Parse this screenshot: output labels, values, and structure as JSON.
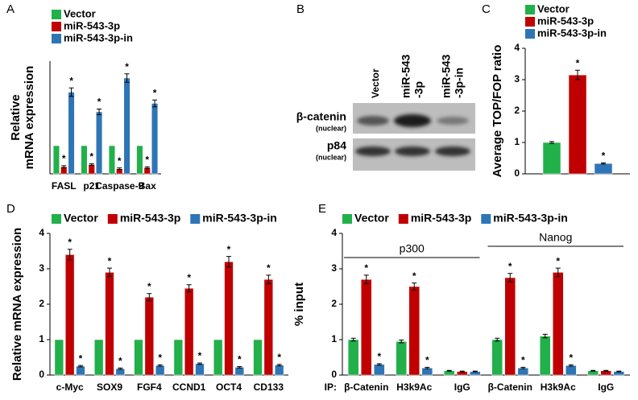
{
  "chart_data": [
    {
      "type": "bar",
      "panel": "A",
      "ylabel": [
        "Relative",
        "mRNA expression"
      ],
      "categories": [
        "FASL",
        "p21",
        "Caspase-9",
        "Bax"
      ],
      "ylim": [
        0,
        4
      ],
      "series": [
        {
          "name": "Vector",
          "color": "#22b04b",
          "values": [
            1,
            1,
            1,
            1
          ]
        },
        {
          "name": "miR-543-3p",
          "color": "#c00000",
          "values": [
            0.25,
            0.33,
            0.18,
            0.22
          ],
          "errors": [
            0.04,
            0.03,
            0.03,
            0.03
          ],
          "marks": [
            "*",
            "*",
            "*",
            "*"
          ]
        },
        {
          "name": "miR-543-3p-in",
          "color": "#2e75b6",
          "values": [
            2.9,
            2.2,
            3.4,
            2.5
          ],
          "errors": [
            0.15,
            0.1,
            0.15,
            0.12
          ],
          "marks": [
            "*",
            "*",
            "*",
            "*"
          ]
        }
      ]
    },
    {
      "type": "bar",
      "panel": "C",
      "ylabel": "Average TOP/FOP ratio",
      "categories": [
        null
      ],
      "ylim": [
        0,
        4
      ],
      "yticks": [
        0,
        1,
        2,
        3,
        4
      ],
      "series": [
        {
          "name": "Vector",
          "color": "#22b04b",
          "values": [
            1.0
          ],
          "errors": [
            0.03
          ]
        },
        {
          "name": "miR-543-3p",
          "color": "#c00000",
          "values": [
            3.15
          ],
          "errors": [
            0.15
          ],
          "marks": [
            "*"
          ]
        },
        {
          "name": "miR-543-3p-in",
          "color": "#2e75b6",
          "values": [
            0.33
          ],
          "errors": [
            0.02
          ],
          "marks": [
            "*"
          ]
        }
      ]
    },
    {
      "type": "bar",
      "panel": "D",
      "ylabel": "Relative  mRNA expression",
      "categories": [
        "c-Myc",
        "SOX9",
        "FGF4",
        "CCND1",
        "OCT4",
        "CD133"
      ],
      "ylim": [
        0,
        4
      ],
      "yticks": [
        0,
        1,
        2,
        3,
        4
      ],
      "series": [
        {
          "name": "Vector",
          "color": "#22b04b",
          "values": [
            1,
            1,
            1,
            1,
            1,
            1
          ]
        },
        {
          "name": "miR-543-3p",
          "color": "#c00000",
          "values": [
            3.4,
            2.9,
            2.2,
            2.45,
            3.2,
            2.7
          ],
          "errors": [
            0.15,
            0.12,
            0.1,
            0.1,
            0.15,
            0.12
          ],
          "marks": [
            "*",
            "*",
            "*",
            "*",
            "*",
            "*"
          ]
        },
        {
          "name": "miR-543-3p-in",
          "color": "#2e75b6",
          "values": [
            0.25,
            0.18,
            0.27,
            0.32,
            0.22,
            0.28
          ],
          "errors": [
            0.02,
            0.02,
            0.02,
            0.02,
            0.02,
            0.02
          ],
          "marks": [
            "*",
            "*",
            "*",
            "*",
            "*",
            "*"
          ]
        }
      ]
    },
    {
      "type": "bar",
      "panel": "E",
      "ylabel": "% input",
      "xprefix": "IP:",
      "categories": [
        "β-Catenin",
        "H3k9Ac",
        "IgG",
        "β-Catenin",
        "H3k9Ac",
        "IgG"
      ],
      "ylim": [
        0,
        4
      ],
      "yticks": [
        0,
        1,
        2,
        3,
        4
      ],
      "groups": [
        {
          "label": "p300",
          "categories": [
            0,
            1,
            2
          ]
        },
        {
          "label": "Nanog",
          "categories": [
            3,
            4,
            5
          ]
        }
      ],
      "series": [
        {
          "name": "Vector",
          "color": "#22b04b",
          "values": [
            1.0,
            0.95,
            0.12,
            1.0,
            1.1,
            0.12
          ],
          "errors": [
            0.04,
            0.04,
            0.01,
            0.04,
            0.05,
            0.01
          ]
        },
        {
          "name": "miR-543-3p",
          "color": "#c00000",
          "values": [
            2.7,
            2.5,
            0.1,
            2.75,
            2.9,
            0.12
          ],
          "errors": [
            0.12,
            0.1,
            0.01,
            0.12,
            0.12,
            0.01
          ],
          "marks": [
            "*",
            "*",
            null,
            "*",
            "*",
            null
          ]
        },
        {
          "name": "miR-543-3p-in",
          "color": "#2e75b6",
          "values": [
            0.3,
            0.2,
            0.1,
            0.2,
            0.27,
            0.1
          ],
          "errors": [
            0.02,
            0.02,
            0.01,
            0.02,
            0.02,
            0.01
          ],
          "marks": [
            "*",
            "*",
            null,
            "*",
            "*",
            null
          ]
        }
      ]
    }
  ],
  "blot": {
    "panel": "B",
    "lanes": [
      [
        "Vector"
      ],
      [
        "miR-543",
        "-3p"
      ],
      [
        "miR-543",
        "-3p-in"
      ]
    ],
    "rows": [
      {
        "label": "β-catenin",
        "note": "(nuclear)"
      },
      {
        "label": "p84",
        "note": "(nuclear)"
      }
    ]
  }
}
